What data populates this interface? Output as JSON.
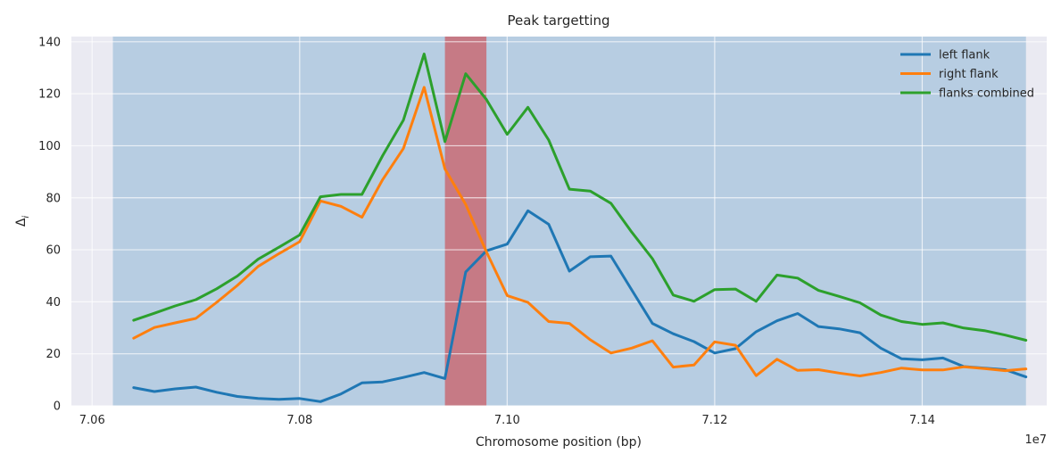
{
  "chart_data": {
    "type": "line",
    "title": "Peak targetting",
    "xlabel": "Chromosome position (bp)",
    "ylabel": "Δ",
    "ylabel_subscript": "i",
    "x_offset_label": "1e7",
    "xlim": [
      7.058,
      7.152
    ],
    "ylim": [
      0,
      142
    ],
    "xticks": [
      7.06,
      7.08,
      7.1,
      7.12,
      7.14
    ],
    "xtick_labels": [
      "7.06",
      "7.08",
      "7.10",
      "7.12",
      "7.14"
    ],
    "yticks": [
      0,
      20,
      40,
      60,
      80,
      100,
      120,
      140
    ],
    "ytick_labels": [
      "0",
      "20",
      "40",
      "60",
      "80",
      "100",
      "120",
      "140"
    ],
    "grid": true,
    "legend_position": "top-right",
    "shaded_regions": [
      {
        "x0": 7.062,
        "x1": 7.15,
        "color": "#1f77b4",
        "opacity": 0.25
      },
      {
        "x0": 7.094,
        "x1": 7.098,
        "color": "#d62728",
        "opacity": 0.5
      }
    ],
    "x": [
      7.064,
      7.066,
      7.068,
      7.07,
      7.072,
      7.074,
      7.076,
      7.078,
      7.08,
      7.082,
      7.084,
      7.086,
      7.088,
      7.09,
      7.092,
      7.094,
      7.096,
      7.098,
      7.1,
      7.102,
      7.104,
      7.106,
      7.108,
      7.11,
      7.112,
      7.114,
      7.116,
      7.118,
      7.12,
      7.122,
      7.124,
      7.126,
      7.128,
      7.13,
      7.132,
      7.134,
      7.136,
      7.138,
      7.14,
      7.142,
      7.144,
      7.146,
      7.148,
      7.15
    ],
    "series": [
      {
        "name": "left flank",
        "color": "#1f77b4",
        "values": [
          7,
          5.5,
          6.5,
          7.2,
          5.2,
          3.6,
          2.8,
          2.5,
          2.8,
          1.6,
          4.6,
          8.8,
          9.2,
          10.9,
          12.8,
          10.5,
          51.5,
          59.6,
          62.2,
          75.0,
          69.8,
          51.8,
          57.3,
          57.6,
          44.6,
          31.7,
          27.7,
          24.7,
          20.3,
          22.0,
          28.5,
          32.7,
          35.5,
          30.5,
          29.6,
          28.1,
          22.2,
          18.1,
          17.7,
          18.4,
          15.1,
          14.5,
          13.9,
          11.1
        ]
      },
      {
        "name": "right flank",
        "color": "#ff7f0e",
        "values": [
          26.0,
          30.1,
          31.9,
          33.6,
          39.8,
          46.3,
          53.6,
          58.5,
          63.1,
          78.8,
          76.7,
          72.5,
          87.0,
          99.0,
          122.5,
          91.1,
          77.4,
          59.2,
          42.4,
          39.8,
          32.4,
          31.7,
          25.4,
          20.3,
          22.2,
          25.0,
          14.9,
          15.7,
          24.6,
          23.3,
          11.6,
          17.9,
          13.6,
          13.9,
          12.6,
          11.5,
          12.8,
          14.5,
          13.8,
          13.8,
          15.0,
          14.3,
          13.5,
          14.2
        ]
      },
      {
        "name": "flanks combined",
        "color": "#2ca02c",
        "values": [
          32.9,
          35.6,
          38.4,
          40.8,
          45.0,
          49.9,
          56.4,
          61.0,
          65.7,
          80.4,
          81.3,
          81.3,
          96.2,
          109.9,
          135.3,
          101.6,
          127.7,
          117.8,
          104.4,
          114.8,
          102.2,
          83.3,
          82.6,
          77.9,
          66.8,
          56.6,
          42.6,
          40.2,
          44.7,
          44.9,
          40.2,
          50.3,
          49.1,
          44.4,
          42.1,
          39.6,
          34.9,
          32.4,
          31.3,
          31.9,
          29.9,
          28.9,
          27.2,
          25.2
        ]
      }
    ]
  }
}
